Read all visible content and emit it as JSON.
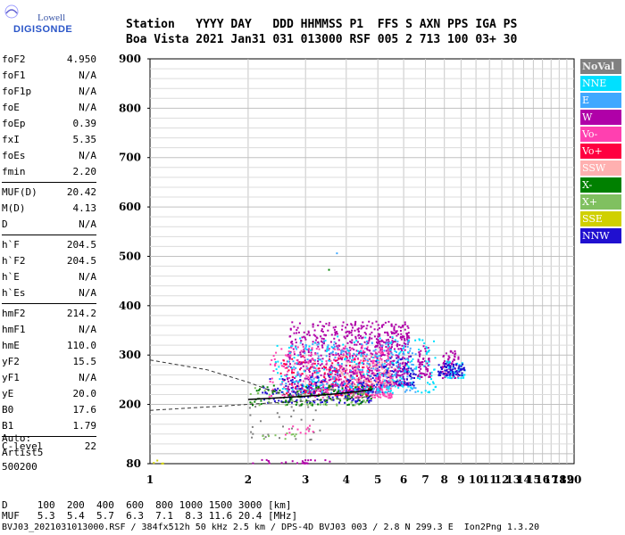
{
  "logo": {
    "brand": "Lowell",
    "name": "DIGISONDE"
  },
  "header": {
    "line1": "Station   YYYY DAY   DDD HHMMSS P1  FFS S AXN PPS IGA PS",
    "line2": "Boa Vista 2021 Jan31 031 013000 RSF 005 2 713 100 03+ 30"
  },
  "params": [
    [
      {
        "k": "foF2",
        "v": "4.950"
      },
      {
        "k": "foF1",
        "v": "N/A"
      },
      {
        "k": "foF1p",
        "v": "N/A"
      },
      {
        "k": "foE",
        "v": "N/A"
      },
      {
        "k": "foEp",
        "v": "0.39"
      },
      {
        "k": "fxI",
        "v": "5.35"
      },
      {
        "k": "foEs",
        "v": "N/A"
      },
      {
        "k": "fmin",
        "v": "2.20"
      }
    ],
    [
      {
        "k": "MUF(D)",
        "v": "20.42"
      },
      {
        "k": "M(D)",
        "v": "4.13"
      },
      {
        "k": "D",
        "v": "N/A"
      }
    ],
    [
      {
        "k": "h`F",
        "v": "204.5"
      },
      {
        "k": "h`F2",
        "v": "204.5"
      },
      {
        "k": "h`E",
        "v": "N/A"
      },
      {
        "k": "h`Es",
        "v": "N/A"
      }
    ],
    [
      {
        "k": "hmF2",
        "v": "214.2"
      },
      {
        "k": "hmF1",
        "v": "N/A"
      },
      {
        "k": "hmE",
        "v": "110.0"
      },
      {
        "k": "yF2",
        "v": "15.5"
      },
      {
        "k": "yF1",
        "v": "N/A"
      },
      {
        "k": "yE",
        "v": "20.0"
      },
      {
        "k": "B0",
        "v": "17.6"
      },
      {
        "k": "B1",
        "v": "1.79"
      }
    ],
    [
      {
        "k": "C-level",
        "v": "22"
      }
    ]
  ],
  "auto": {
    "line1": "Auto:",
    "line2": "Artist5",
    "line3": "500200"
  },
  "legend": [
    {
      "label": "NoVal",
      "color": "#808080"
    },
    {
      "label": "NNE",
      "color": "#00e0ff"
    },
    {
      "label": "E",
      "color": "#40a8ff"
    },
    {
      "label": "W",
      "color": "#b000a8"
    },
    {
      "label": "Vo-",
      "color": "#ff40b0"
    },
    {
      "label": "Vo+",
      "color": "#ff0040"
    },
    {
      "label": "SSW",
      "color": "#ffb0b0"
    },
    {
      "label": "X-",
      "color": "#008000"
    },
    {
      "label": "X+",
      "color": "#80c060"
    },
    {
      "label": "SSE",
      "color": "#d0d000"
    },
    {
      "label": "NNW",
      "color": "#2010d0"
    }
  ],
  "footer": {
    "dist": "D     100  200  400  600  800 1000 1500 3000 [km]",
    "muf": "MUF   5.3  5.4  5.7  6.3  7.1  8.3 11.6 20.4 [MHz]",
    "file": "BVJ03_2021031013000.RSF / 384fx512h 50 kHz 2.5 km / DPS-4D BVJ03 003 / 2.8 N 299.3 E  Ion2Png 1.3.20"
  },
  "chart_data": {
    "type": "scatter",
    "xlim": [
      1,
      20
    ],
    "ylim": [
      80,
      900
    ],
    "xscale": "log",
    "x_ticks": [
      1,
      2,
      3,
      4,
      5,
      6,
      7,
      8,
      9,
      10,
      11,
      12,
      13,
      14,
      15,
      16,
      17,
      18,
      19,
      20
    ],
    "y_ticks": [
      80,
      200,
      300,
      400,
      500,
      600,
      700,
      800,
      900
    ],
    "grid": true,
    "legend_position": "right",
    "clusters": [
      {
        "name": "W",
        "x": [
          2.6,
          5.2
        ],
        "y": [
          225,
          370
        ],
        "count": 700
      },
      {
        "name": "W",
        "x": [
          5.2,
          6.2
        ],
        "y": [
          240,
          370
        ],
        "count": 250
      },
      {
        "name": "W",
        "x": [
          6.6,
          7.2
        ],
        "y": [
          255,
          320
        ],
        "count": 60
      },
      {
        "name": "W",
        "x": [
          7.8,
          8.8
        ],
        "y": [
          255,
          310
        ],
        "count": 60
      },
      {
        "name": "Vo-",
        "x": [
          2.3,
          5.5
        ],
        "y": [
          215,
          320
        ],
        "count": 350
      },
      {
        "name": "Vo+",
        "x": [
          2.5,
          4.8
        ],
        "y": [
          220,
          300
        ],
        "count": 120
      },
      {
        "name": "E",
        "x": [
          2.5,
          6.5
        ],
        "y": [
          225,
          330
        ],
        "count": 250
      },
      {
        "name": "NNE",
        "x": [
          2.4,
          7.5
        ],
        "y": [
          225,
          340
        ],
        "count": 220
      },
      {
        "name": "NNE",
        "x": [
          8.0,
          9.2
        ],
        "y": [
          255,
          290
        ],
        "count": 40
      },
      {
        "name": "NNW",
        "x": [
          2.2,
          4.8
        ],
        "y": [
          205,
          260
        ],
        "count": 150
      },
      {
        "name": "NNW",
        "x": [
          7.6,
          9.2
        ],
        "y": [
          260,
          285
        ],
        "count": 70
      },
      {
        "name": "NNW",
        "x": [
          4.8,
          6.5
        ],
        "y": [
          240,
          300
        ],
        "count": 60
      },
      {
        "name": "X-",
        "x": [
          2.0,
          4.8
        ],
        "y": [
          200,
          240
        ],
        "count": 100
      },
      {
        "name": "X+",
        "x": [
          2.0,
          4.6
        ],
        "y": [
          200,
          235
        ],
        "count": 60
      },
      {
        "name": "SSW",
        "x": [
          3.8,
          5.6
        ],
        "y": [
          240,
          300
        ],
        "count": 70
      },
      {
        "name": "NoVal",
        "x": [
          2.0,
          3.4
        ],
        "y": [
          130,
          200
        ],
        "count": 30
      },
      {
        "name": "SSE",
        "x": [
          1.0,
          1.1
        ],
        "y": [
          82,
          90
        ],
        "count": 4
      },
      {
        "name": "W",
        "x": [
          2.0,
          3.6
        ],
        "y": [
          82,
          90
        ],
        "count": 25
      },
      {
        "name": "Vo-",
        "x": [
          2.3,
          3.2
        ],
        "y": [
          140,
          160
        ],
        "count": 12
      },
      {
        "name": "X+",
        "x": [
          2.2,
          2.8
        ],
        "y": [
          130,
          145
        ],
        "count": 10
      },
      {
        "name": "E",
        "x": [
          3.7,
          3.8
        ],
        "y": [
          505,
          510
        ],
        "count": 1
      },
      {
        "name": "X-",
        "x": [
          3.5,
          3.6
        ],
        "y": [
          470,
          475
        ],
        "count": 1
      }
    ],
    "profile_curve": {
      "x": [
        2.0,
        2.6,
        3.2,
        3.8,
        4.3,
        4.8
      ],
      "y": [
        210,
        214,
        218,
        222,
        226,
        230
      ]
    },
    "dashed_curves": [
      {
        "x": [
          1.0,
          1.5,
          2.0,
          2.3,
          2.6
        ],
        "y": [
          290,
          270,
          245,
          230,
          220
        ]
      },
      {
        "x": [
          1.0,
          1.6,
          2.2,
          2.9,
          3.6,
          4.4,
          4.9
        ],
        "y": [
          188,
          196,
          202,
          206,
          210,
          214,
          218
        ]
      }
    ]
  }
}
